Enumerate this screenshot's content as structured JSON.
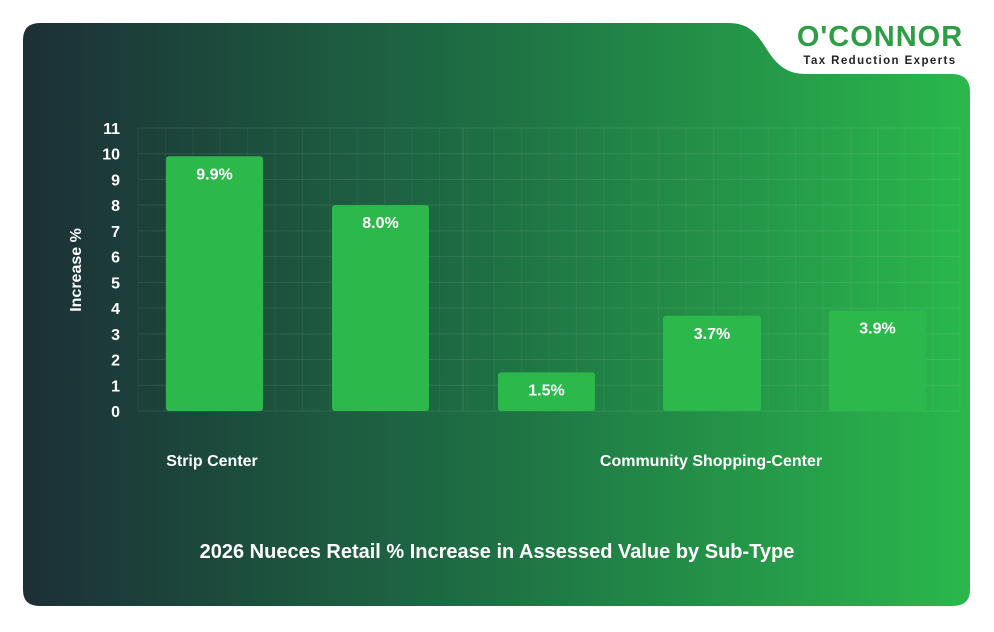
{
  "brand": {
    "name": "O'CONNOR",
    "tagline": "Tax Reduction Experts"
  },
  "colors": {
    "bar": "#2db84c",
    "text": "#ffffff",
    "grid": "rgba(255,255,255,0.09)",
    "accent": "#2e9e44"
  },
  "chart_data": {
    "type": "bar",
    "title": "2026 Nueces Retail % Increase in Assessed Value by Sub-Type",
    "ylabel": "Increase %",
    "xlabel": "",
    "ylim": [
      0,
      11
    ],
    "yticks": [
      "0",
      "1",
      "2",
      "3",
      "4",
      "5",
      "6",
      "7",
      "8",
      "9",
      "10",
      "11"
    ],
    "groups": [
      {
        "label": "Strip Center",
        "values": [
          9.9,
          8.0
        ],
        "labels": [
          "9.9%",
          "8.0%"
        ]
      },
      {
        "label": "Community Shopping-Center",
        "values": [
          1.5,
          3.7,
          3.9
        ],
        "labels": [
          "1.5%",
          "3.7%",
          "3.9%"
        ]
      }
    ],
    "grid": true
  }
}
